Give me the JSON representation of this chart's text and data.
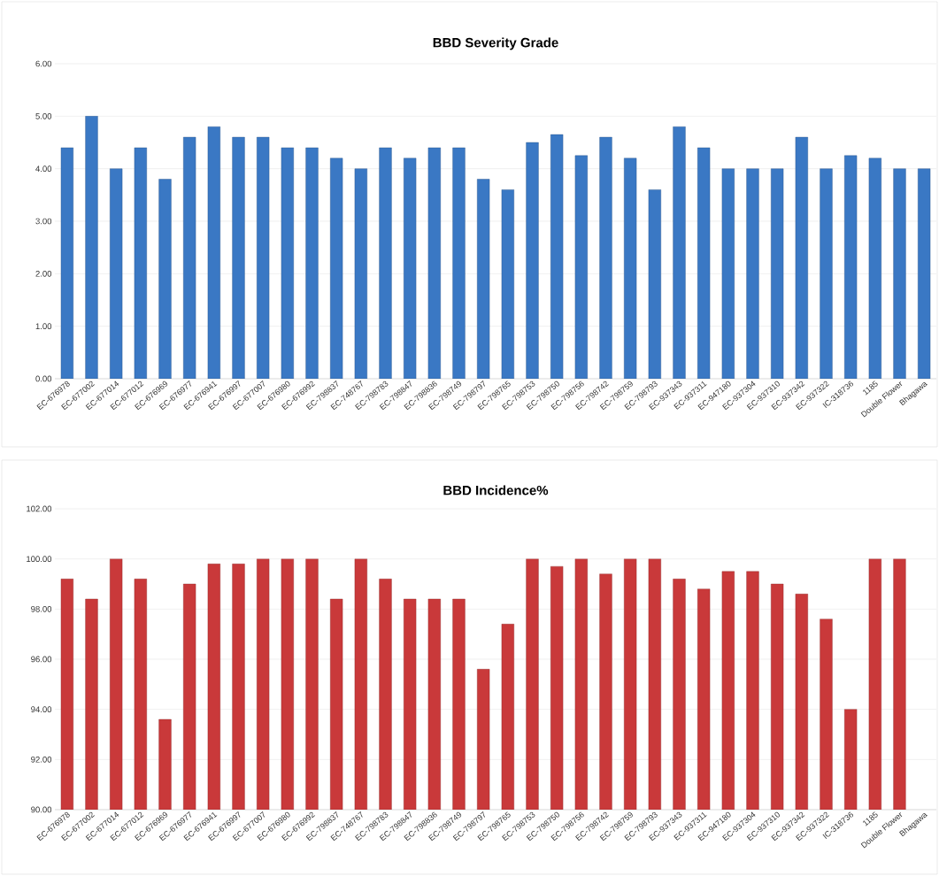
{
  "chart_data": [
    {
      "type": "bar",
      "title": "BBD Severity Grade",
      "categories": [
        "EC-676978",
        "EC-677002",
        "EC-677014",
        "EC-677012",
        "EC-676969",
        "EC-676977",
        "EC-676941",
        "EC-676997",
        "EC-677007",
        "EC-676980",
        "EC-676992",
        "EC-798837",
        "EC-748767",
        "EC-798783",
        "EC-798847",
        "EC-798836",
        "EC-798749",
        "EC-798797",
        "EC-798765",
        "EC-798753",
        "EC-798750",
        "EC-798756",
        "EC-798742",
        "EC-798759",
        "EC-798793",
        "EC-937343",
        "EC-937311",
        "EC-947180",
        "EC-937304",
        "EC-937310",
        "EC-937342",
        "EC-937322",
        "IC-318736",
        "1185",
        "Double Flower",
        "Bhagawa"
      ],
      "values": [
        4.4,
        5.0,
        4.0,
        4.4,
        3.8,
        4.6,
        4.8,
        4.6,
        4.6,
        4.4,
        4.4,
        4.2,
        4.0,
        4.4,
        4.2,
        4.4,
        4.4,
        3.8,
        3.6,
        4.5,
        4.65,
        4.25,
        4.6,
        4.2,
        3.6,
        4.8,
        4.4,
        4.0,
        4.0,
        4.0,
        4.6,
        4.0,
        4.25,
        4.2,
        4.0,
        4.0
      ],
      "color": "#3a78c4",
      "ylim": [
        0,
        6
      ],
      "yticks": [
        {
          "value": 0,
          "label": "0.00"
        },
        {
          "value": 1,
          "label": "1.00"
        },
        {
          "value": 2,
          "label": "2.00"
        },
        {
          "value": 3,
          "label": "3.00"
        },
        {
          "value": 4,
          "label": "4.00"
        },
        {
          "value": 5,
          "label": "5.00"
        },
        {
          "value": 6,
          "label": "6.00"
        }
      ],
      "grid": "y"
    },
    {
      "type": "bar",
      "title": "BBD Incidence%",
      "categories": [
        "EC-676978",
        "EC-677002",
        "EC-677014",
        "EC-677012",
        "EC-676969",
        "EC-676977",
        "EC-676941",
        "EC-676997",
        "EC-677007",
        "EC-676980",
        "EC-676992",
        "EC-798837",
        "EC-748767",
        "EC-798783",
        "EC-798847",
        "EC-798836",
        "EC-798749",
        "EC-798797",
        "EC-798765",
        "EC-798753",
        "EC-798750",
        "EC-798756",
        "EC-798742",
        "EC-798759",
        "EC-798793",
        "EC-937343",
        "EC-937311",
        "EC-947180",
        "EC-937304",
        "EC-937310",
        "EC-937342",
        "EC-937322",
        "IC-318736",
        "1185",
        "Double Flower",
        "Bhagawa"
      ],
      "values": [
        99.2,
        98.4,
        100,
        99.2,
        93.6,
        99.0,
        99.8,
        99.8,
        100,
        100,
        100,
        98.4,
        100,
        99.2,
        98.4,
        98.4,
        98.4,
        95.6,
        97.4,
        100,
        99.7,
        100,
        99.4,
        100,
        100,
        99.2,
        98.8,
        99.5,
        99.5,
        99.0,
        98.6,
        97.6,
        94.0,
        100,
        100,
        null
      ],
      "color": "#c9393a",
      "ylim": [
        90,
        102
      ],
      "yticks": [
        {
          "value": 90,
          "label": "90.00"
        },
        {
          "value": 92,
          "label": "92.00"
        },
        {
          "value": 94,
          "label": "94.00"
        },
        {
          "value": 96,
          "label": "96.00"
        },
        {
          "value": 98,
          "label": "98.00"
        },
        {
          "value": 100,
          "label": "100.00"
        },
        {
          "value": 102,
          "label": "102.00"
        }
      ],
      "grid": "y"
    }
  ]
}
